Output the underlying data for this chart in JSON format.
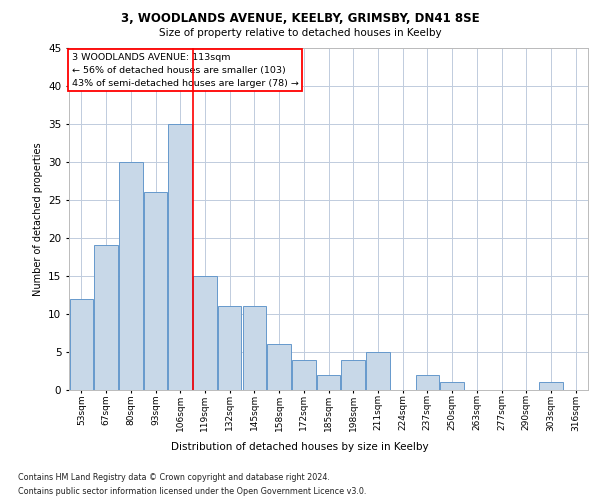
{
  "title_line1": "3, WOODLANDS AVENUE, KEELBY, GRIMSBY, DN41 8SE",
  "title_line2": "Size of property relative to detached houses in Keelby",
  "xlabel": "Distribution of detached houses by size in Keelby",
  "ylabel": "Number of detached properties",
  "bar_labels": [
    "53sqm",
    "67sqm",
    "80sqm",
    "93sqm",
    "106sqm",
    "119sqm",
    "132sqm",
    "145sqm",
    "158sqm",
    "172sqm",
    "185sqm",
    "198sqm",
    "211sqm",
    "224sqm",
    "237sqm",
    "250sqm",
    "263sqm",
    "277sqm",
    "290sqm",
    "303sqm",
    "316sqm"
  ],
  "bar_values": [
    12,
    19,
    30,
    26,
    35,
    15,
    11,
    11,
    6,
    4,
    2,
    4,
    5,
    0,
    2,
    1,
    0,
    0,
    0,
    1,
    0
  ],
  "bar_color": "#c8d8e8",
  "bar_edge_color": "#6699cc",
  "ylim": [
    0,
    45
  ],
  "yticks": [
    0,
    5,
    10,
    15,
    20,
    25,
    30,
    35,
    40,
    45
  ],
  "annotation_title": "3 WOODLANDS AVENUE: 113sqm",
  "annotation_line1": "← 56% of detached houses are smaller (103)",
  "annotation_line2": "43% of semi-detached houses are larger (78) →",
  "footnote_line1": "Contains HM Land Registry data © Crown copyright and database right 2024.",
  "footnote_line2": "Contains public sector information licensed under the Open Government Licence v3.0.",
  "background_color": "#ffffff",
  "grid_color": "#c0ccdd",
  "ref_line_x": 4.5
}
